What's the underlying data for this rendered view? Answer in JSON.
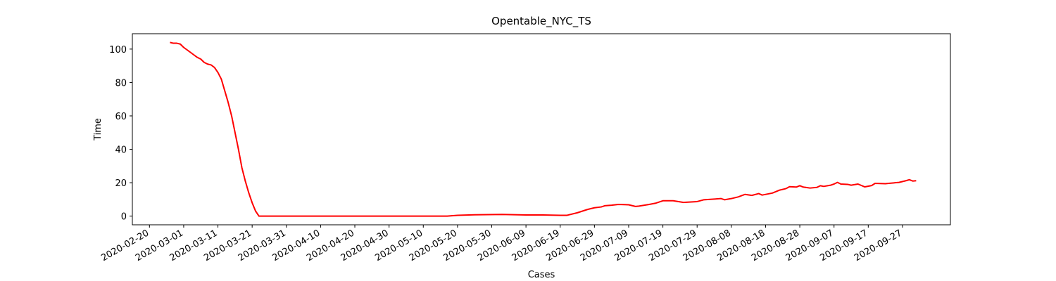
{
  "chart_data": {
    "type": "line",
    "title": "Opentable_NYC_TS",
    "x_label": "Cases",
    "y_label": "Time",
    "x": [
      "2020-02-26",
      "2020-02-27",
      "2020-02-28",
      "2020-02-29",
      "2020-03-01",
      "2020-03-03",
      "2020-03-05",
      "2020-03-06",
      "2020-03-07",
      "2020-03-08",
      "2020-03-09",
      "2020-03-10",
      "2020-03-11",
      "2020-03-12",
      "2020-03-13",
      "2020-03-14",
      "2020-03-15",
      "2020-03-16",
      "2020-03-17",
      "2020-03-18",
      "2020-03-19",
      "2020-03-20",
      "2020-03-21",
      "2020-03-22",
      "2020-03-23",
      "2020-04-01",
      "2020-04-15",
      "2020-05-01",
      "2020-05-15",
      "2020-05-17",
      "2020-05-20",
      "2020-05-25",
      "2020-06-02",
      "2020-06-09",
      "2020-06-14",
      "2020-06-19",
      "2020-06-21",
      "2020-06-24",
      "2020-06-27",
      "2020-06-29",
      "2020-07-01",
      "2020-07-02",
      "2020-07-04",
      "2020-07-06",
      "2020-07-09",
      "2020-07-11",
      "2020-07-12",
      "2020-07-15",
      "2020-07-17",
      "2020-07-19",
      "2020-07-22",
      "2020-07-25",
      "2020-07-29",
      "2020-07-31",
      "2020-08-03",
      "2020-08-05",
      "2020-08-06",
      "2020-08-08",
      "2020-08-10",
      "2020-08-12",
      "2020-08-14",
      "2020-08-16",
      "2020-08-17",
      "2020-08-20",
      "2020-08-22",
      "2020-08-24",
      "2020-08-25",
      "2020-08-27",
      "2020-08-28",
      "2020-08-29",
      "2020-08-31",
      "2020-09-02",
      "2020-09-03",
      "2020-09-04",
      "2020-09-06",
      "2020-09-07",
      "2020-09-08",
      "2020-09-09",
      "2020-09-11",
      "2020-09-12",
      "2020-09-14",
      "2020-09-16",
      "2020-09-18",
      "2020-09-19",
      "2020-09-22",
      "2020-09-23",
      "2020-09-26",
      "2020-09-28",
      "2020-09-29",
      "2020-09-30",
      "2020-10-01"
    ],
    "series": [
      {
        "name": "Opentable_NYC_TS",
        "color": "#ff0000",
        "values": [
          104,
          103.5,
          103.5,
          103,
          101,
          98,
          95,
          94,
          92,
          91,
          90.5,
          89,
          86,
          82,
          75,
          68,
          60,
          50,
          40,
          29,
          21,
          14,
          8,
          3,
          0,
          0,
          0,
          0,
          0,
          0,
          0.5,
          0.8,
          1,
          0.7,
          0.7,
          0.5,
          0.5,
          2,
          4,
          5,
          5.5,
          6.2,
          6.5,
          7,
          6.8,
          5.8,
          6,
          7,
          7.8,
          9.2,
          9.2,
          8.2,
          8.7,
          9.8,
          10.2,
          10.5,
          9.8,
          10.5,
          11.5,
          13,
          12.4,
          13.5,
          12.6,
          13.8,
          15.5,
          16.5,
          17.6,
          17.4,
          18.2,
          17.4,
          16.8,
          17.2,
          18.2,
          17.8,
          18.5,
          19.2,
          20.2,
          19.2,
          19,
          18.5,
          19.2,
          17.5,
          18.3,
          19.6,
          19.4,
          19.6,
          20.2,
          21.2,
          21.8,
          21,
          21.2
        ]
      }
    ],
    "xlim": [
      "2020-02-15",
      "2020-10-11"
    ],
    "xticks": [
      "2020-02-20",
      "2020-03-01",
      "2020-03-11",
      "2020-03-21",
      "2020-03-31",
      "2020-04-10",
      "2020-04-20",
      "2020-04-30",
      "2020-05-10",
      "2020-05-20",
      "2020-05-30",
      "2020-06-09",
      "2020-06-19",
      "2020-06-29",
      "2020-07-09",
      "2020-07-19",
      "2020-07-29",
      "2020-08-08",
      "2020-08-18",
      "2020-08-28",
      "2020-09-07",
      "2020-09-17",
      "2020-09-27"
    ],
    "ylim": [
      -5.2,
      109.2
    ],
    "yticks": [
      0,
      20,
      40,
      60,
      80,
      100
    ],
    "grid": false
  }
}
